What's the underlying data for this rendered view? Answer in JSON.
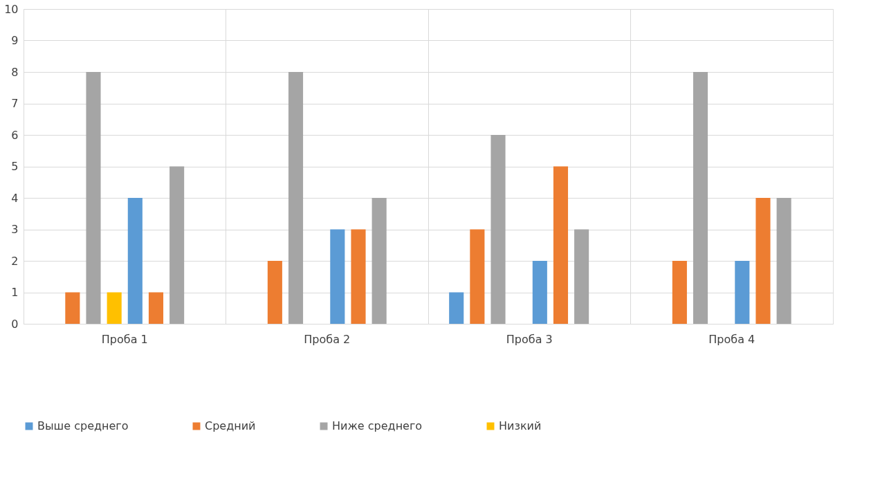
{
  "chart_data": {
    "type": "bar",
    "categories": [
      "Проба 1",
      "Проба 2",
      "Проба 3",
      "Проба 4"
    ],
    "series": [
      {
        "name": "Выше среднего",
        "color": "#5b9bd5",
        "values": [
          0,
          0,
          1,
          0
        ]
      },
      {
        "name": "Средний",
        "color": "#ed7d31",
        "values": [
          1,
          2,
          3,
          2
        ]
      },
      {
        "name": "Ниже среднего",
        "color": "#a5a5a5",
        "values": [
          8,
          8,
          6,
          8
        ]
      },
      {
        "name": "Низкий",
        "color": "#ffc000",
        "values": [
          1,
          0,
          0,
          0
        ]
      },
      {
        "color": "#5b9bd5",
        "values": [
          4,
          3,
          2,
          2
        ]
      },
      {
        "color": "#ed7d31",
        "values": [
          1,
          3,
          5,
          4
        ]
      },
      {
        "color": "#a5a5a5",
        "values": [
          5,
          4,
          3,
          4
        ]
      },
      {
        "color": "#ffc000",
        "values": [
          0,
          0,
          0,
          0
        ]
      }
    ],
    "ylim": [
      0,
      10
    ],
    "yticks": [
      0,
      1,
      2,
      3,
      4,
      5,
      6,
      7,
      8,
      9,
      10
    ],
    "grid": true,
    "legend": "bottom"
  }
}
